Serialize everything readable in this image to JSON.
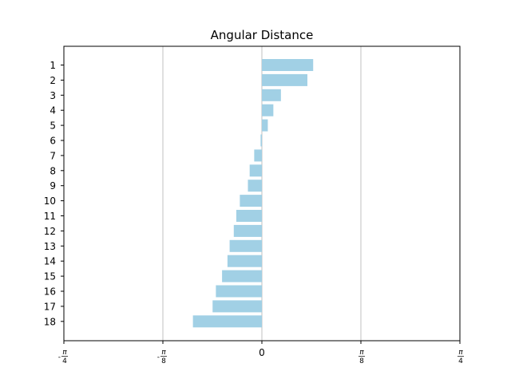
{
  "chart_data": {
    "type": "bar",
    "orientation": "horizontal",
    "title": "Angular Distance",
    "xlabel": "",
    "ylabel": "",
    "categories": [
      "1",
      "2",
      "3",
      "4",
      "5",
      "6",
      "7",
      "8",
      "9",
      "10",
      "11",
      "12",
      "13",
      "14",
      "15",
      "16",
      "17",
      "18"
    ],
    "values": [
      0.2034,
      0.1805,
      0.0755,
      0.0455,
      0.0235,
      -0.005,
      -0.0305,
      -0.0485,
      -0.0555,
      -0.0875,
      -0.1015,
      -0.1115,
      -0.128,
      -0.1365,
      -0.158,
      -0.1825,
      -0.1955,
      -0.2735
    ],
    "xlim": [
      -0.7854,
      0.7854
    ],
    "xticks": [
      {
        "value": -0.7854,
        "num": "π",
        "den": "4",
        "sign": "-"
      },
      {
        "value": -0.3927,
        "num": "π",
        "den": "8",
        "sign": "-"
      },
      {
        "value": 0,
        "label": "0"
      },
      {
        "value": 0.3927,
        "num": "π",
        "den": "8",
        "sign": ""
      },
      {
        "value": 0.7854,
        "num": "π",
        "den": "4",
        "sign": ""
      }
    ],
    "grid": "x",
    "bar_color": "#a1d0e5",
    "grid_color": "#b0b0b0"
  }
}
